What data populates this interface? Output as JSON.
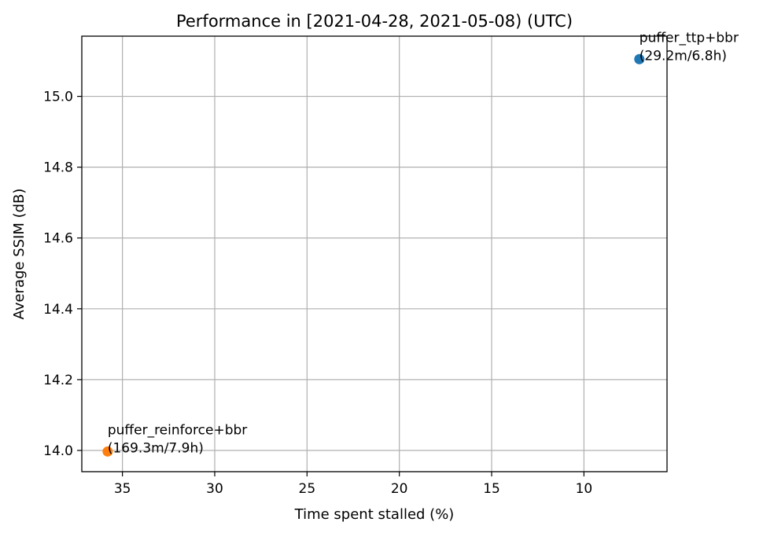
{
  "chart_data": {
    "type": "scatter",
    "title": "Performance in [2021-04-28, 2021-05-08) (UTC)",
    "xlabel": "Time spent stalled (%)",
    "ylabel": "Average SSIM (dB)",
    "x_inverted": true,
    "xlim": [
      37.2,
      5.5
    ],
    "ylim": [
      13.94,
      15.17
    ],
    "xticks": [
      35,
      30,
      25,
      20,
      15,
      10
    ],
    "yticks": [
      14.0,
      14.2,
      14.4,
      14.6,
      14.8,
      15.0
    ],
    "grid": true,
    "series": [
      {
        "name": "puffer_ttp+bbr",
        "label_line1": "puffer_ttp+bbr",
        "label_line2": "(29.2m/6.8h)",
        "x": 7.0,
        "y": 15.105,
        "color": "#1f77b4"
      },
      {
        "name": "puffer_reinforce+bbr",
        "label_line1": "puffer_reinforce+bbr",
        "label_line2": "(169.3m/7.9h)",
        "x": 35.8,
        "y": 13.997,
        "color": "#ff7f0e"
      }
    ]
  }
}
